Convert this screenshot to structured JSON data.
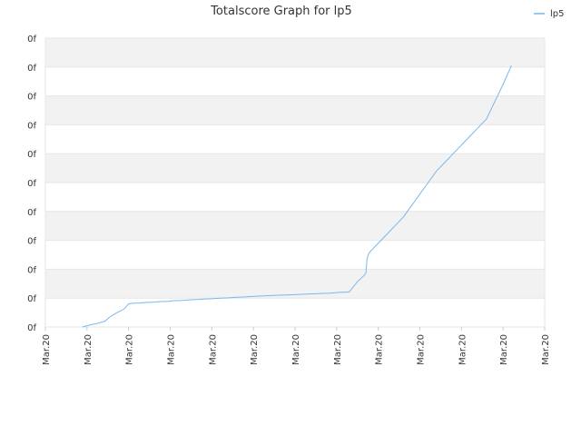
{
  "chart_data": {
    "type": "line",
    "title": "Totalscore Graph for lp5",
    "xlabel": "",
    "ylabel": "",
    "legend": {
      "placement": "top-right",
      "entries": [
        "lp5"
      ]
    },
    "grid": true,
    "x_tick_labels": [
      "Mar.20",
      "Mar.20",
      "Mar.20",
      "Mar.20",
      "Mar.20",
      "Mar.20",
      "Mar.20",
      "Mar.20",
      "Mar.20",
      "Mar.20",
      "Mar.20",
      "Mar.20",
      "Mar.20"
    ],
    "y_tick_labels": [
      "0f",
      "0f",
      "0f",
      "0f",
      "0f",
      "0f",
      "0f",
      "0f",
      "0f",
      "0f",
      "0f"
    ],
    "xlim": [
      0,
      12
    ],
    "ylim": [
      0,
      10
    ],
    "colors": {
      "line": "#7cb5ec",
      "band": "#f2f2f2",
      "grid": "#e6e6e6",
      "axis": "#cccccc",
      "text": "#333333"
    },
    "series": [
      {
        "name": "lp5",
        "x": [
          0.89,
          1.07,
          1.24,
          1.43,
          1.55,
          1.63,
          1.75,
          1.89,
          2.0,
          2.09,
          2.25,
          2.4,
          2.6,
          2.75,
          2.95,
          3.1,
          3.3,
          3.45,
          3.65,
          3.85,
          4.0,
          4.2,
          4.4,
          4.6,
          4.8,
          5.0,
          5.3,
          5.6,
          5.8,
          6.1,
          6.3,
          6.6,
          6.85,
          7.05,
          7.3,
          7.5,
          7.6,
          7.7,
          7.72,
          7.73,
          7.75,
          7.76,
          7.8,
          8.0,
          8.2,
          8.4,
          8.6,
          8.8,
          9.0,
          9.2,
          9.4,
          9.6,
          9.8,
          10.0,
          10.2,
          10.4,
          10.6,
          10.8,
          11.0,
          11.2
        ],
        "y": [
          0.0,
          0.07,
          0.12,
          0.2,
          0.35,
          0.42,
          0.52,
          0.62,
          0.8,
          0.82,
          0.83,
          0.85,
          0.86,
          0.88,
          0.89,
          0.91,
          0.92,
          0.94,
          0.95,
          0.97,
          0.98,
          1.0,
          1.01,
          1.03,
          1.04,
          1.06,
          1.08,
          1.1,
          1.11,
          1.13,
          1.14,
          1.16,
          1.17,
          1.2,
          1.21,
          1.57,
          1.7,
          1.85,
          2.15,
          2.35,
          2.45,
          2.5,
          2.6,
          2.9,
          3.2,
          3.5,
          3.8,
          4.2,
          4.6,
          5.0,
          5.4,
          5.7,
          6.0,
          6.3,
          6.6,
          6.9,
          7.2,
          7.8,
          8.4,
          9.05
        ]
      }
    ]
  }
}
